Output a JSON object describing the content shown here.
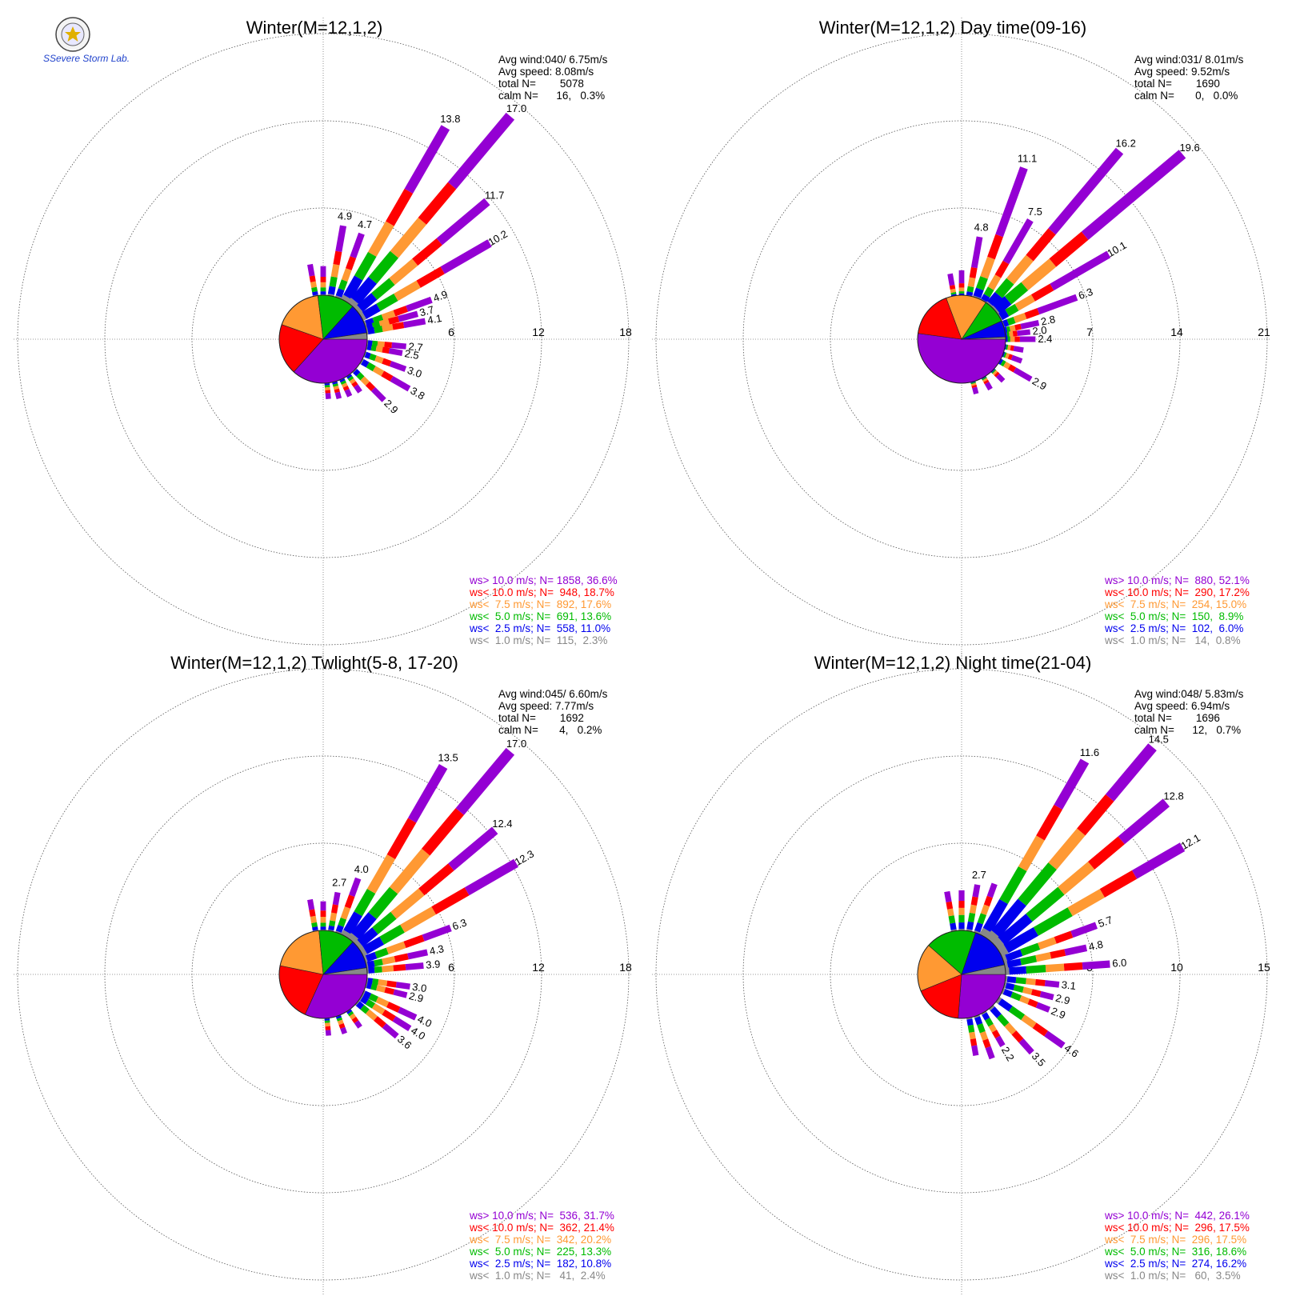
{
  "logo": {
    "text": "SSevere Storm Lab."
  },
  "colors": {
    "gt10": "#9400D3",
    "lt10": "#FF0000",
    "lt7_5": "#FF9933",
    "lt5": "#00BB00",
    "lt2_5": "#0000EE",
    "lt1": "#888888"
  },
  "chart_data": [
    {
      "type": "wind-rose",
      "title": "Winter(M=12,1,2)",
      "info": [
        "Avg wind:040/ 6.75m/s",
        "Avg speed: 8.08m/s",
        "total N=        5078",
        "calm N=      16,   0.3%"
      ],
      "rings": [
        6,
        12,
        18
      ],
      "ring_labels": [
        "6",
        "12",
        "18"
      ],
      "r_max": 18,
      "center_pie": [
        36.6,
        18.7,
        17.6,
        13.6,
        11.0,
        2.3
      ],
      "spokes": [
        {
          "deg": -10,
          "total": 2.2
        },
        {
          "deg": 0,
          "total": 2.0
        },
        {
          "deg": 10,
          "total": 4.9,
          "label": "4.9"
        },
        {
          "deg": 20,
          "total": 4.7,
          "label": "4.7"
        },
        {
          "deg": 30,
          "total": 13.8,
          "label": "13.8"
        },
        {
          "deg": 40,
          "total": 17.0,
          "label": "17.0"
        },
        {
          "deg": 50,
          "total": 11.7,
          "label": "11.7"
        },
        {
          "deg": 60,
          "total": 10.2,
          "label": "10.2"
        },
        {
          "deg": 70,
          "total": 4.9,
          "label": "4.9"
        },
        {
          "deg": 75,
          "total": 3.7,
          "label": "3.7"
        },
        {
          "deg": 80,
          "total": 4.1,
          "label": "4.1"
        },
        {
          "deg": 95,
          "total": 2.7,
          "label": "2.7"
        },
        {
          "deg": 100,
          "total": 2.5,
          "label": "2.5"
        },
        {
          "deg": 110,
          "total": 3.0,
          "label": "3.0"
        },
        {
          "deg": 120,
          "total": 3.8,
          "label": "3.8"
        },
        {
          "deg": 135,
          "total": 2.9,
          "label": "2.9"
        },
        {
          "deg": 145,
          "total": 1.4
        },
        {
          "deg": 155,
          "total": 1.3
        },
        {
          "deg": 165,
          "total": 1.2
        },
        {
          "deg": 175,
          "total": 1.1
        }
      ],
      "legend": [
        {
          "label": "ws> 10.0 m/s; N=",
          "value": "1858, 36.6%"
        },
        {
          "label": "ws< 10.0 m/s; N=",
          "value": " 948, 18.7%"
        },
        {
          "label": "ws<  7.5 m/s; N=",
          "value": " 892, 17.6%"
        },
        {
          "label": "ws<  5.0 m/s; N=",
          "value": " 691, 13.6%"
        },
        {
          "label": "ws<  2.5 m/s; N=",
          "value": " 558, 11.0%"
        },
        {
          "label": "ws<  1.0 m/s; N=",
          "value": " 115,  2.3%"
        }
      ]
    },
    {
      "type": "wind-rose",
      "title": "Winter(M=12,1,2) Day time(09-16)",
      "info": [
        "Avg wind:031/ 8.01m/s",
        "Avg speed: 9.52m/s",
        "total N=        1690",
        "calm N=       0,   0.0%"
      ],
      "rings": [
        7,
        14,
        21
      ],
      "ring_labels": [
        "7",
        "14",
        "21"
      ],
      "r_max": 21,
      "center_pie": [
        52.1,
        17.2,
        15.0,
        8.9,
        6.0,
        0.8
      ],
      "spokes": [
        {
          "deg": -10,
          "total": 1.8
        },
        {
          "deg": 0,
          "total": 2.0
        },
        {
          "deg": 10,
          "total": 4.8,
          "label": "4.8"
        },
        {
          "deg": 20,
          "total": 11.1,
          "label": "11.1"
        },
        {
          "deg": 30,
          "total": 7.5,
          "label": "7.5"
        },
        {
          "deg": 40,
          "total": 16.2,
          "label": "16.2"
        },
        {
          "deg": 50,
          "total": 19.6,
          "label": "19.6"
        },
        {
          "deg": 60,
          "total": 10.1,
          "label": "10.1"
        },
        {
          "deg": 70,
          "total": 6.3,
          "label": "6.3"
        },
        {
          "deg": 78,
          "total": 2.8,
          "label": "2.8"
        },
        {
          "deg": 84,
          "total": 2.0,
          "label": "2.0"
        },
        {
          "deg": 90,
          "total": 2.4,
          "label": "2.4"
        },
        {
          "deg": 100,
          "total": 1.5
        },
        {
          "deg": 110,
          "total": 1.6
        },
        {
          "deg": 120,
          "total": 2.9,
          "label": "2.9"
        },
        {
          "deg": 135,
          "total": 1.2
        },
        {
          "deg": 150,
          "total": 1.1
        },
        {
          "deg": 165,
          "total": 1.0
        }
      ],
      "legend": [
        {
          "label": "ws> 10.0 m/s; N=",
          "value": " 880, 52.1%"
        },
        {
          "label": "ws< 10.0 m/s; N=",
          "value": " 290, 17.2%"
        },
        {
          "label": "ws<  7.5 m/s; N=",
          "value": " 254, 15.0%"
        },
        {
          "label": "ws<  5.0 m/s; N=",
          "value": " 150,  8.9%"
        },
        {
          "label": "ws<  2.5 m/s; N=",
          "value": " 102,  6.0%"
        },
        {
          "label": "ws<  1.0 m/s; N=",
          "value": "  14,  0.8%"
        }
      ]
    },
    {
      "type": "wind-rose",
      "title": "Winter(M=12,1,2) Twlight(5-8, 17-20)",
      "info": [
        "Avg wind:045/ 6.60m/s",
        "Avg speed: 7.77m/s",
        "total N=        1692",
        "calm N=       4,   0.2%"
      ],
      "rings": [
        6,
        12,
        18
      ],
      "ring_labels": [
        "6",
        "12",
        "18"
      ],
      "r_max": 18,
      "center_pie": [
        31.7,
        21.4,
        20.2,
        13.3,
        10.8,
        2.4
      ],
      "spokes": [
        {
          "deg": -10,
          "total": 2.2
        },
        {
          "deg": 0,
          "total": 2.0
        },
        {
          "deg": 10,
          "total": 2.7,
          "label": "2.7"
        },
        {
          "deg": 20,
          "total": 4.0,
          "label": "4.0"
        },
        {
          "deg": 30,
          "total": 13.5,
          "label": "13.5"
        },
        {
          "deg": 40,
          "total": 17.0,
          "label": "17.0"
        },
        {
          "deg": 50,
          "total": 12.4,
          "label": "12.4"
        },
        {
          "deg": 60,
          "total": 12.3,
          "label": "12.3"
        },
        {
          "deg": 70,
          "total": 6.3,
          "label": "6.3"
        },
        {
          "deg": 78,
          "total": 4.3,
          "label": "4.3"
        },
        {
          "deg": 85,
          "total": 3.9,
          "label": "3.9"
        },
        {
          "deg": 98,
          "total": 3.0,
          "label": "3.0"
        },
        {
          "deg": 104,
          "total": 2.9,
          "label": "2.9"
        },
        {
          "deg": 115,
          "total": 4.0,
          "label": "4.0"
        },
        {
          "deg": 122,
          "total": 4.0,
          "label": "4.0"
        },
        {
          "deg": 130,
          "total": 3.6,
          "label": "3.6"
        },
        {
          "deg": 145,
          "total": 1.4
        },
        {
          "deg": 160,
          "total": 1.3
        },
        {
          "deg": 175,
          "total": 1.2
        }
      ],
      "legend": [
        {
          "label": "ws> 10.0 m/s; N=",
          "value": " 536, 31.7%"
        },
        {
          "label": "ws< 10.0 m/s; N=",
          "value": " 362, 21.4%"
        },
        {
          "label": "ws<  7.5 m/s; N=",
          "value": " 342, 20.2%"
        },
        {
          "label": "ws<  5.0 m/s; N=",
          "value": " 225, 13.3%"
        },
        {
          "label": "ws<  2.5 m/s; N=",
          "value": " 182, 10.8%"
        },
        {
          "label": "ws<  1.0 m/s; N=",
          "value": "  41,  2.4%"
        }
      ]
    },
    {
      "type": "wind-rose",
      "title": "Winter(M=12,1,2) Night time(21-04)",
      "info": [
        "Avg wind:048/ 5.83m/s",
        "Avg speed: 6.94m/s",
        "total N=        1696",
        "calm N=      12,   0.7%"
      ],
      "rings": [
        5,
        10,
        15
      ],
      "ring_labels": [
        "5",
        "10",
        "15"
      ],
      "r_max": 15,
      "center_pie": [
        26.1,
        17.5,
        17.5,
        18.6,
        16.2,
        3.5
      ],
      "spokes": [
        {
          "deg": -10,
          "total": 2.3
        },
        {
          "deg": 0,
          "total": 2.3
        },
        {
          "deg": 10,
          "total": 2.7,
          "label": "2.7"
        },
        {
          "deg": 20,
          "total": 3.0
        },
        {
          "deg": 30,
          "total": 11.6,
          "label": "11.6"
        },
        {
          "deg": 40,
          "total": 14.5,
          "label": "14.5"
        },
        {
          "deg": 50,
          "total": 12.8,
          "label": "12.8"
        },
        {
          "deg": 60,
          "total": 12.1,
          "label": "12.1"
        },
        {
          "deg": 70,
          "total": 5.7,
          "label": "5.7"
        },
        {
          "deg": 78,
          "total": 4.8,
          "label": "4.8"
        },
        {
          "deg": 86,
          "total": 6.0,
          "label": "6.0"
        },
        {
          "deg": 96,
          "total": 3.1,
          "label": "3.1"
        },
        {
          "deg": 104,
          "total": 2.9,
          "label": "2.9"
        },
        {
          "deg": 112,
          "total": 2.9,
          "label": "2.9"
        },
        {
          "deg": 125,
          "total": 4.6,
          "label": "4.6"
        },
        {
          "deg": 138,
          "total": 3.5,
          "label": "3.5"
        },
        {
          "deg": 150,
          "total": 2.2,
          "label": "2.2"
        },
        {
          "deg": 160,
          "total": 2.6
        },
        {
          "deg": 170,
          "total": 2.2
        }
      ],
      "legend": [
        {
          "label": "ws> 10.0 m/s; N=",
          "value": " 442, 26.1%"
        },
        {
          "label": "ws< 10.0 m/s; N=",
          "value": " 296, 17.5%"
        },
        {
          "label": "ws<  7.5 m/s; N=",
          "value": " 296, 17.5%"
        },
        {
          "label": "ws<  5.0 m/s; N=",
          "value": " 316, 18.6%"
        },
        {
          "label": "ws<  2.5 m/s; N=",
          "value": " 274, 16.2%"
        },
        {
          "label": "ws<  1.0 m/s; N=",
          "value": "  60,  3.5%"
        }
      ]
    }
  ]
}
